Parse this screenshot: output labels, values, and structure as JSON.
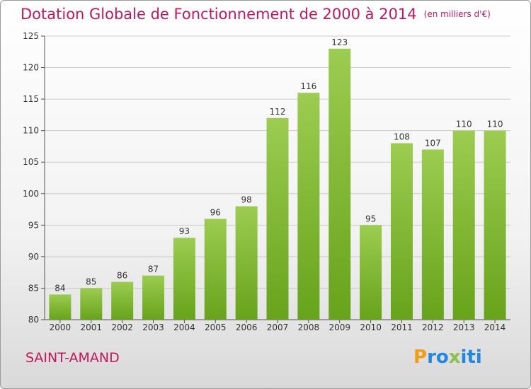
{
  "header": {
    "title": "Dotation Globale de Fonctionnement de 2000 à 2014",
    "unit": "(en milliers d'€)"
  },
  "footer": {
    "city": "SAINT-AMAND"
  },
  "logo": {
    "text": "Proxiti",
    "letters": [
      {
        "char": "P",
        "color": "#f39c12"
      },
      {
        "char": "r",
        "color": "#1e88e5"
      },
      {
        "char": "o",
        "color": "#1e88e5"
      },
      {
        "char": "x",
        "color": "#8bc34a"
      },
      {
        "char": "i",
        "color": "#1e88e5"
      },
      {
        "char": "t",
        "color": "#1e88e5"
      },
      {
        "char": "i",
        "color": "#1e88e5"
      }
    ]
  },
  "colors": {
    "bar_light": "#9ccc50",
    "bar_dark": "#67a31b",
    "title": "#c2185b",
    "grid": "#cccccc"
  },
  "chart_data": {
    "type": "bar",
    "categories": [
      "2000",
      "2001",
      "2002",
      "2003",
      "2004",
      "2005",
      "2006",
      "2007",
      "2008",
      "2009",
      "2010",
      "2011",
      "2012",
      "2013",
      "2014"
    ],
    "values": [
      84,
      85,
      86,
      87,
      93,
      96,
      98,
      112,
      116,
      123,
      95,
      108,
      107,
      110,
      110
    ],
    "yticks": [
      80,
      85,
      90,
      95,
      100,
      105,
      110,
      115,
      120,
      125
    ],
    "ylim": [
      80,
      125
    ],
    "grid": true,
    "data_labels": true
  }
}
